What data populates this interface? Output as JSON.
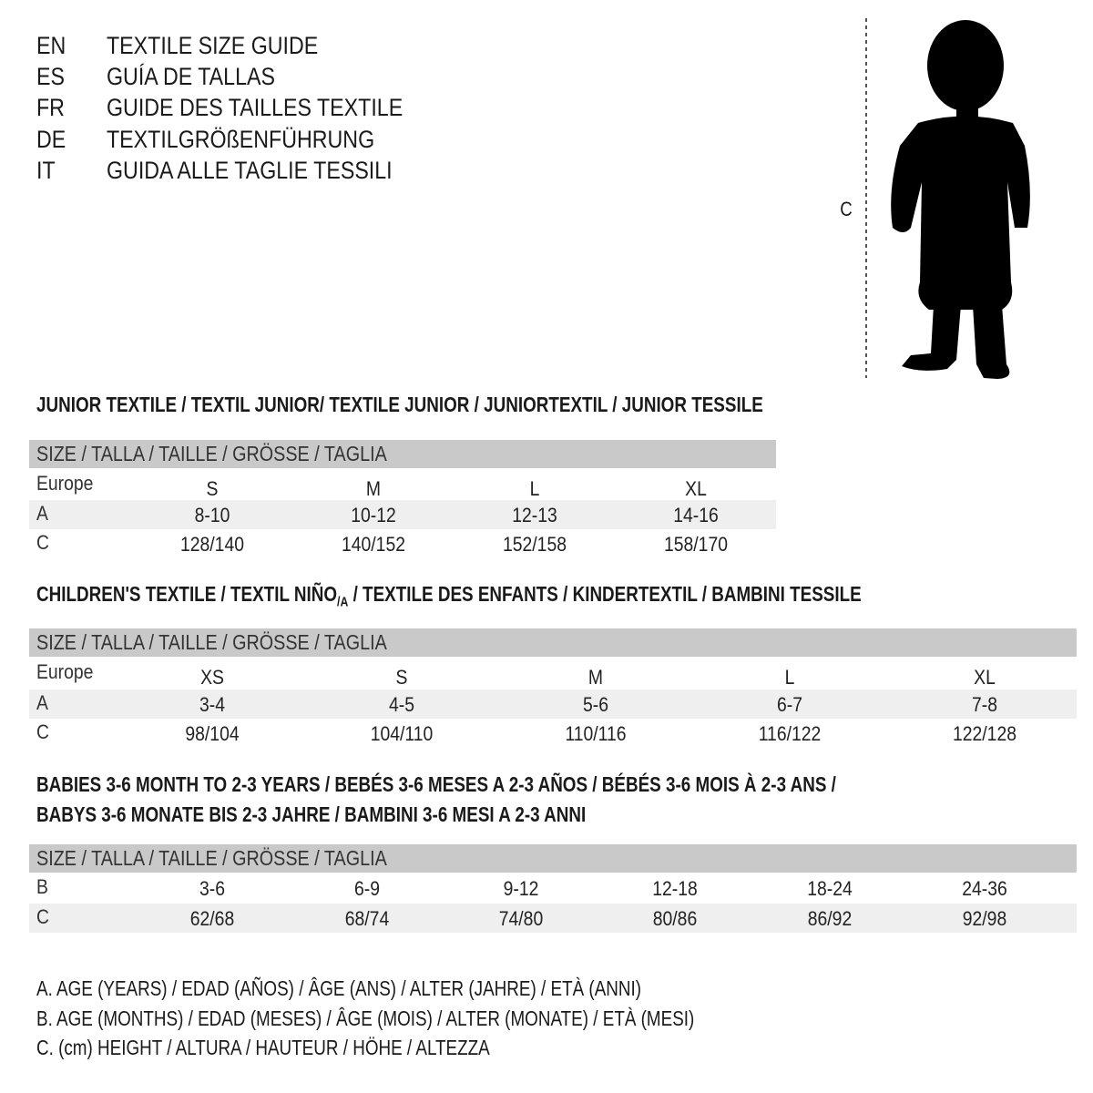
{
  "header": [
    {
      "code": "EN",
      "text": "TEXTILE SIZE GUIDE"
    },
    {
      "code": "ES",
      "text": "GUÍA DE TALLAS"
    },
    {
      "code": "FR",
      "text": "GUIDE DES TAILLES TEXTILE"
    },
    {
      "code": "DE",
      "text": "TEXTILGRÖßENFÜHRUNG"
    },
    {
      "code": "IT",
      "text": "GUIDA ALLE TAGLIE TESSILI"
    }
  ],
  "figure": {
    "measure_label": "C",
    "icon": "child-silhouette"
  },
  "junior": {
    "title": "JUNIOR TEXTILE / TEXTIL JUNIOR/ TEXTILE JUNIOR / JUNIORTEXTIL / JUNIOR TESSILE",
    "band": "SIZE / TALLA / TAILLE / GRÖSSE / TAGLIA",
    "rows": [
      {
        "label": "Europe",
        "cells": [
          "S",
          "M",
          "L",
          "XL"
        ]
      },
      {
        "label": "A",
        "cells": [
          "8-10",
          "10-12",
          "12-13",
          "14-16"
        ]
      },
      {
        "label": "C",
        "cells": [
          "128/140",
          "140/152",
          "152/158",
          "158/170"
        ]
      }
    ]
  },
  "children": {
    "title_a": "CHILDREN'S TEXTILE / TEXTIL NIÑO",
    "title_sub": "/A",
    "title_b": " / TEXTILE DES ENFANTS / KINDERTEXTIL / BAMBINI TESSILE",
    "band": "SIZE / TALLA / TAILLE / GRÖSSE / TAGLIA",
    "rows": [
      {
        "label": "Europe",
        "cells": [
          "XS",
          "S",
          "M",
          "L",
          "XL"
        ]
      },
      {
        "label": "A",
        "cells": [
          "3-4",
          "4-5",
          "5-6",
          "6-7",
          "7-8"
        ]
      },
      {
        "label": "C",
        "cells": [
          "98/104",
          "104/110",
          "110/116",
          "116/122",
          "122/128"
        ]
      }
    ]
  },
  "babies": {
    "title_1": "BABIES 3-6 MONTH TO 2-3 YEARS / BEBÉS 3-6 MESES A 2-3 AÑOS / BÉBÉS 3-6 MOIS À 2-3 ANS /",
    "title_2": "BABYS 3-6 MONATE BIS 2-3 JAHRE / BAMBINI 3-6 MESI A 2-3 ANNI",
    "band": "SIZE / TALLA / TAILLE / GRÖSSE / TAGLIA",
    "rows": [
      {
        "label": "B",
        "cells": [
          "3-6",
          "6-9",
          "9-12",
          "12-18",
          "18-24",
          "24-36"
        ]
      },
      {
        "label": "C",
        "cells": [
          "62/68",
          "68/74",
          "74/80",
          "80/86",
          "86/92",
          "92/98"
        ]
      }
    ]
  },
  "legend": [
    "A. AGE (YEARS) / EDAD (AÑOS) / ÂGE (ANS) / ALTER (JAHRE) / ETÀ (ANNI)",
    "B. AGE (MONTHS) / EDAD (MESES) / ÂGE (MOIS) / ALTER (MONATE) / ETÀ (MESI)",
    "C. (cm) HEIGHT / ALTURA / HAUTEUR / HÖHE / ALTEZZA"
  ]
}
